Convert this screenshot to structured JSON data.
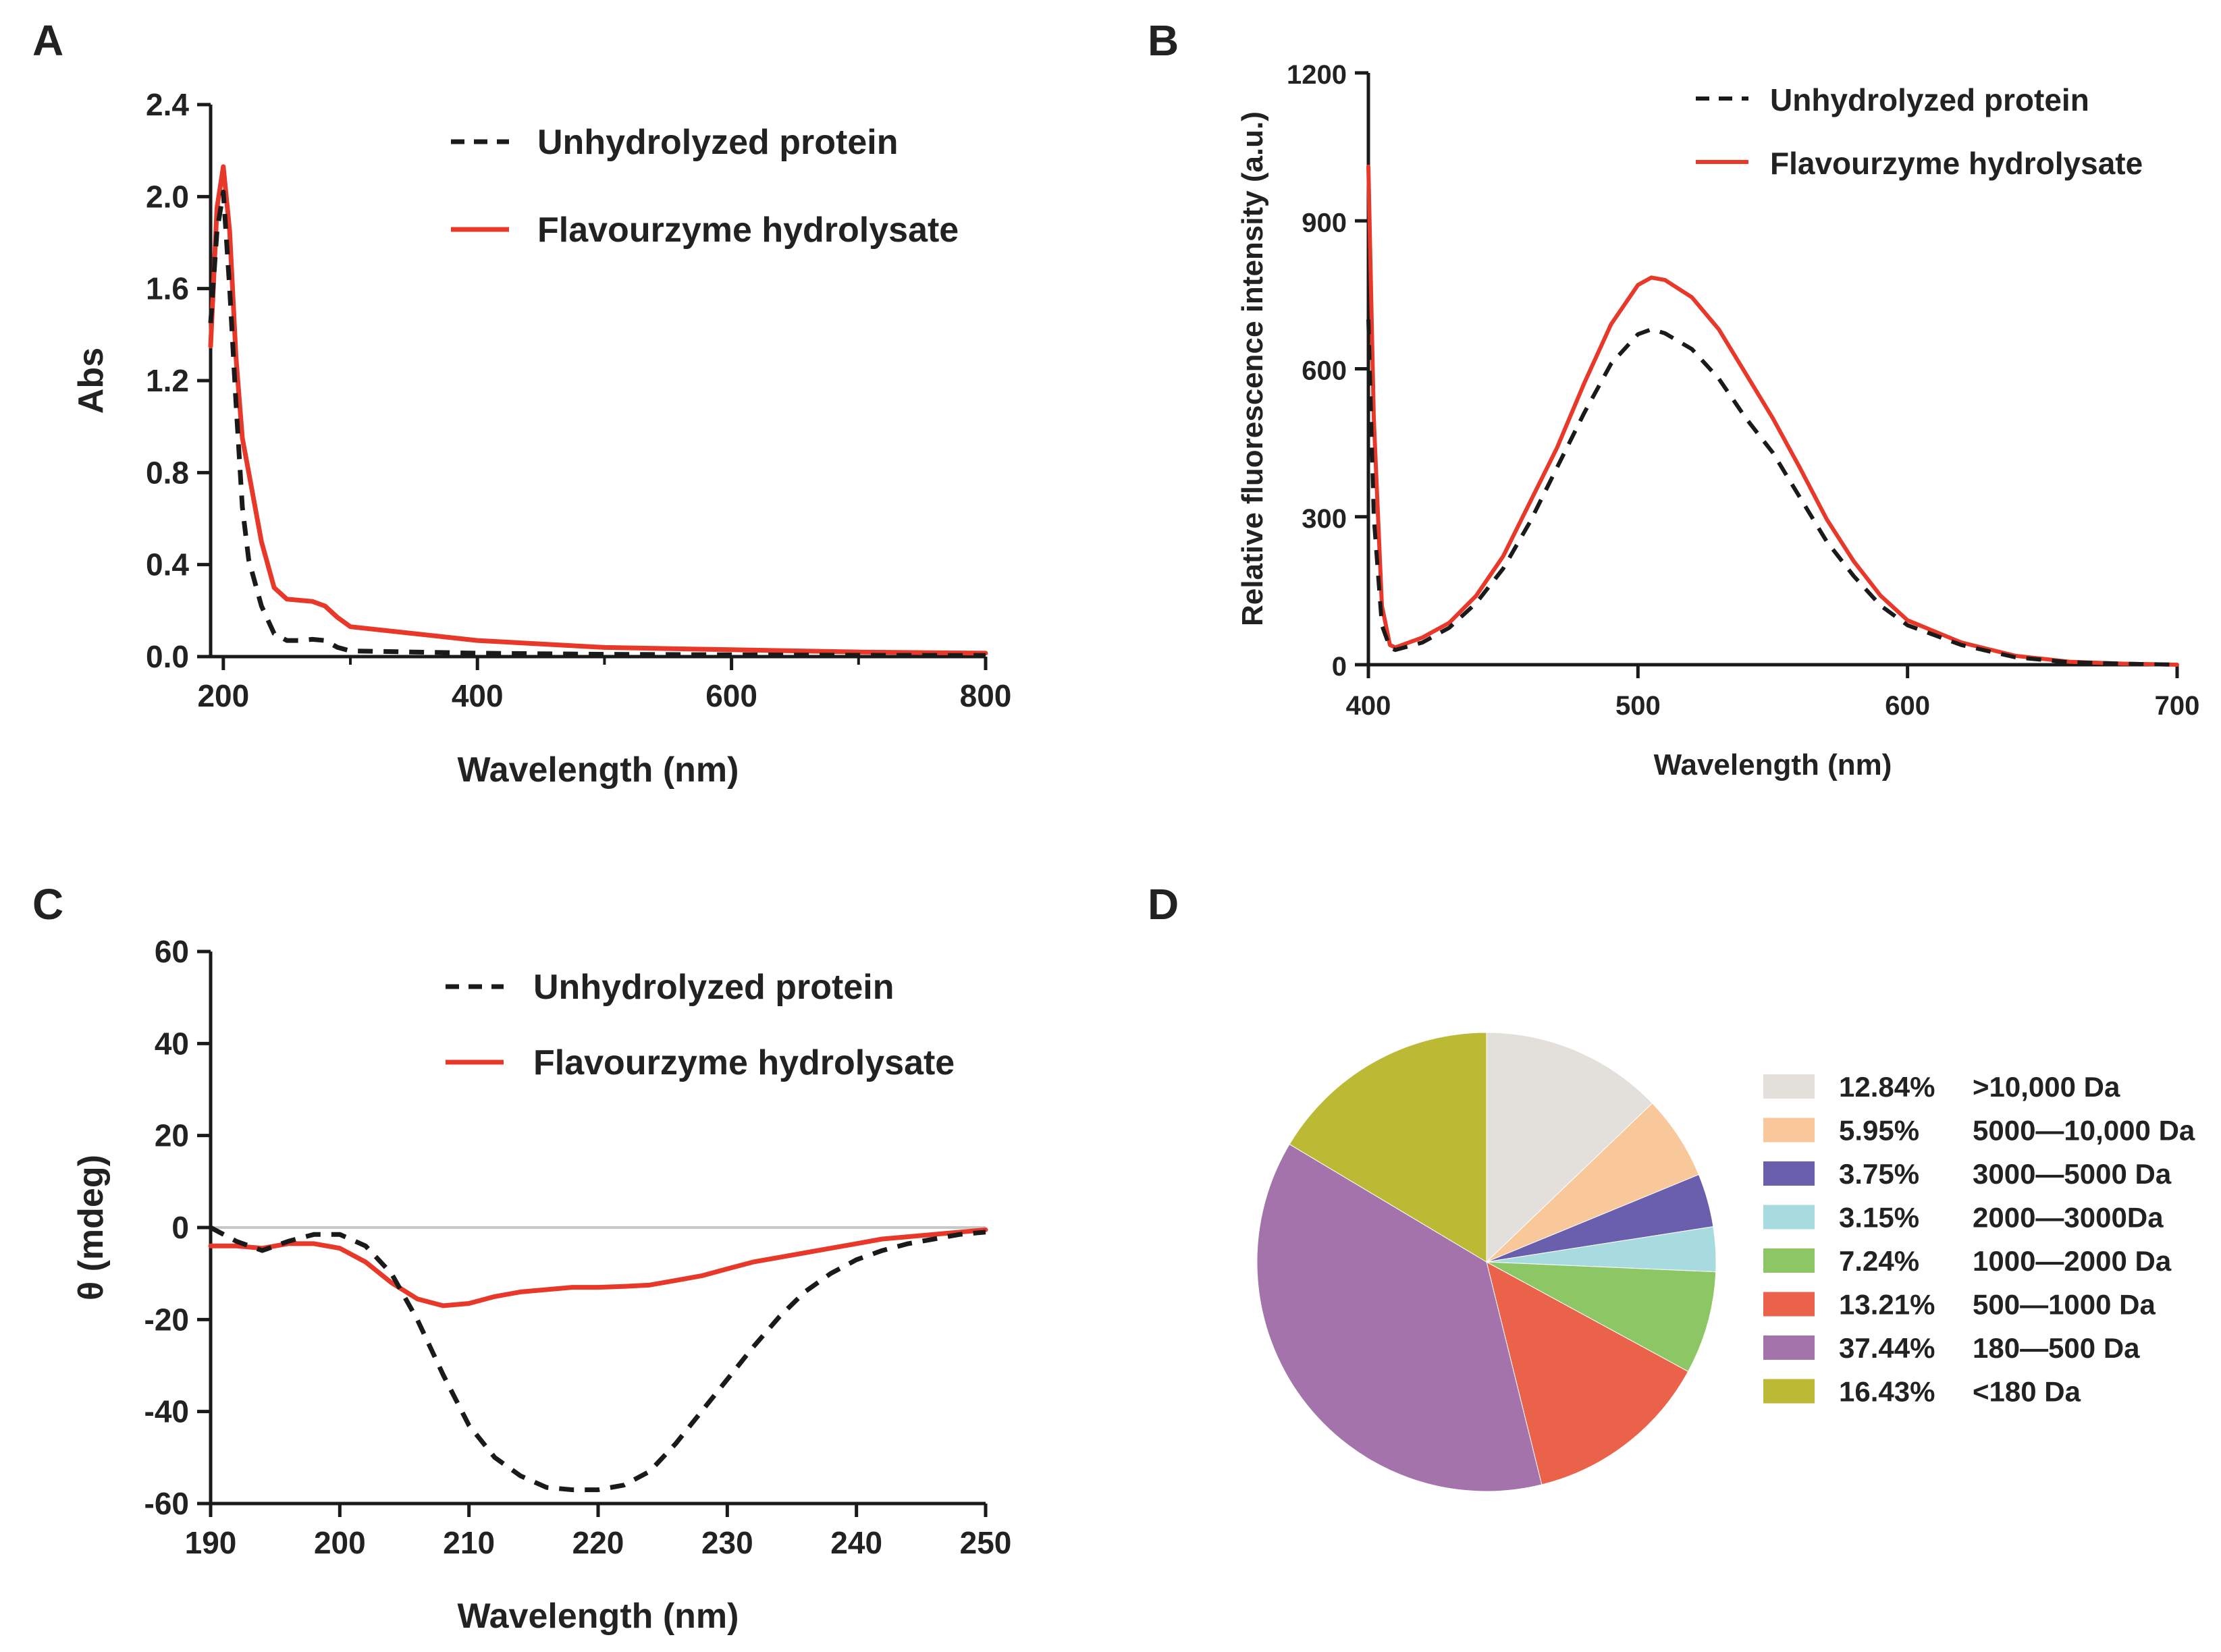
{
  "colors": {
    "unhydrolyzed": "#1a1a1a",
    "flavourzyme": "#e8382a",
    "axis": "#1a1a1a",
    "zero_line": "#c8c8c8"
  },
  "chart_data": [
    {
      "panel": "A",
      "type": "line",
      "xlabel": "Wavelength (nm)",
      "ylabel": "Abs",
      "xlim": [
        190,
        800
      ],
      "ylim": [
        0,
        2.4
      ],
      "xticks": [
        "200",
        "400",
        "600",
        "800"
      ],
      "yticks": [
        "0.0",
        "0.4",
        "0.8",
        "1.2",
        "1.6",
        "2.0",
        "2.4"
      ],
      "legend_position": "top-right",
      "series": [
        {
          "name": "Unhydrolyzed protein",
          "style": "dashed",
          "x": [
            190,
            195,
            200,
            205,
            210,
            215,
            220,
            230,
            240,
            250,
            260,
            270,
            280,
            290,
            300,
            350,
            400,
            500,
            600,
            700,
            800
          ],
          "y": [
            1.45,
            1.85,
            2.02,
            1.6,
            1.1,
            0.65,
            0.42,
            0.22,
            0.1,
            0.07,
            0.07,
            0.075,
            0.07,
            0.04,
            0.025,
            0.02,
            0.015,
            0.01,
            0.008,
            0.006,
            0.005
          ]
        },
        {
          "name": "Flavourzyme hydrolysate",
          "style": "solid",
          "x": [
            190,
            195,
            200,
            205,
            210,
            215,
            220,
            230,
            240,
            250,
            260,
            270,
            280,
            290,
            300,
            350,
            400,
            500,
            600,
            700,
            800
          ],
          "y": [
            1.35,
            1.95,
            2.13,
            1.85,
            1.3,
            0.95,
            0.8,
            0.5,
            0.3,
            0.25,
            0.245,
            0.24,
            0.22,
            0.17,
            0.13,
            0.1,
            0.07,
            0.04,
            0.03,
            0.02,
            0.015
          ]
        }
      ]
    },
    {
      "panel": "B",
      "type": "line",
      "xlabel": "Wavelength (nm)",
      "ylabel": "Relative fluorescence intensity (a.u.)",
      "xlim": [
        400,
        700
      ],
      "ylim": [
        0,
        1200
      ],
      "xticks": [
        "400",
        "500",
        "600",
        "700"
      ],
      "yticks": [
        "0",
        "300",
        "600",
        "900",
        "1200"
      ],
      "legend_position": "top-right",
      "series": [
        {
          "name": "Unhydrolyzed protein",
          "style": "dashed",
          "x": [
            400,
            402,
            405,
            408,
            410,
            420,
            430,
            440,
            450,
            460,
            470,
            480,
            490,
            500,
            505,
            510,
            520,
            530,
            540,
            550,
            560,
            570,
            580,
            590,
            600,
            620,
            640,
            660,
            680,
            700
          ],
          "y": [
            700,
            300,
            80,
            35,
            30,
            45,
            75,
            125,
            195,
            290,
            400,
            510,
            610,
            670,
            680,
            672,
            640,
            580,
            500,
            430,
            340,
            250,
            180,
            120,
            80,
            40,
            15,
            5,
            2,
            0
          ]
        },
        {
          "name": "Flavourzyme hydrolysate",
          "style": "solid",
          "x": [
            400,
            402,
            405,
            408,
            410,
            420,
            430,
            440,
            450,
            460,
            470,
            480,
            490,
            500,
            505,
            510,
            520,
            530,
            540,
            550,
            560,
            570,
            580,
            590,
            600,
            620,
            640,
            660,
            680,
            700
          ],
          "y": [
            1010,
            500,
            120,
            40,
            35,
            55,
            85,
            140,
            220,
            330,
            440,
            570,
            690,
            770,
            785,
            780,
            745,
            680,
            590,
            500,
            400,
            295,
            210,
            140,
            90,
            45,
            18,
            6,
            2,
            0
          ]
        }
      ]
    },
    {
      "panel": "C",
      "type": "line",
      "xlabel": "Wavelength (nm)",
      "ylabel": "θ (mdeg)",
      "xlim": [
        190,
        250
      ],
      "ylim": [
        -60,
        60
      ],
      "xticks": [
        "190",
        "200",
        "210",
        "220",
        "230",
        "240",
        "250"
      ],
      "yticks": [
        "-60",
        "-40",
        "-20",
        "0",
        "20",
        "40",
        "60"
      ],
      "legend_position": "top-right",
      "series": [
        {
          "name": "Unhydrolyzed protein",
          "style": "dashed",
          "x": [
            190,
            192,
            194,
            196,
            198,
            200,
            202,
            204,
            206,
            208,
            210,
            212,
            214,
            216,
            218,
            220,
            222,
            224,
            226,
            228,
            230,
            232,
            234,
            236,
            238,
            240,
            242,
            244,
            246,
            248,
            250
          ],
          "y": [
            0,
            -3,
            -5,
            -3,
            -1.5,
            -1.5,
            -4,
            -10,
            -20,
            -32,
            -43,
            -50,
            -54,
            -56.5,
            -57,
            -57,
            -56,
            -53,
            -47,
            -40,
            -33,
            -26,
            -19.5,
            -14,
            -10,
            -7,
            -5,
            -3.5,
            -2.5,
            -1.5,
            -1
          ]
        },
        {
          "name": "Flavourzyme hydrolysate",
          "style": "solid",
          "x": [
            190,
            192,
            194,
            196,
            198,
            200,
            202,
            204,
            206,
            208,
            210,
            212,
            214,
            216,
            218,
            220,
            222,
            224,
            226,
            228,
            230,
            232,
            234,
            236,
            238,
            240,
            242,
            244,
            246,
            248,
            250
          ],
          "y": [
            -4,
            -4,
            -4.5,
            -3.5,
            -3.5,
            -4.5,
            -7.5,
            -12,
            -15.5,
            -17,
            -16.5,
            -15,
            -14,
            -13.5,
            -13,
            -13,
            -12.8,
            -12.5,
            -11.5,
            -10.5,
            -9,
            -7.5,
            -6.5,
            -5.5,
            -4.5,
            -3.5,
            -2.5,
            -2,
            -1.5,
            -1,
            -0.5
          ]
        }
      ]
    },
    {
      "panel": "D",
      "type": "pie",
      "legend_position": "right",
      "slices": [
        {
          "percent": "12.84%",
          "value": 12.84,
          "label": ">10,000 Da",
          "color": "#e3dfda"
        },
        {
          "percent": "5.95%",
          "value": 5.95,
          "label": "5000—10,000 Da",
          "color": "#f8c89a"
        },
        {
          "percent": "3.75%",
          "value": 3.75,
          "label": "3000—5000 Da",
          "color": "#6a5fad"
        },
        {
          "percent": "3.15%",
          "value": 3.15,
          "label": "2000—3000Da",
          "color": "#a8dbe0"
        },
        {
          "percent": "7.24%",
          "value": 7.24,
          "label": "1000—2000 Da",
          "color": "#8dc665"
        },
        {
          "percent": "13.21%",
          "value": 13.21,
          "label": "500—1000 Da",
          "color": "#ea6249"
        },
        {
          "percent": "37.44%",
          "value": 37.44,
          "label": "180—500 Da",
          "color": "#a473ac"
        },
        {
          "percent": "16.43%",
          "value": 16.43,
          "label": "<180 Da",
          "color": "#bcba35"
        }
      ]
    }
  ]
}
